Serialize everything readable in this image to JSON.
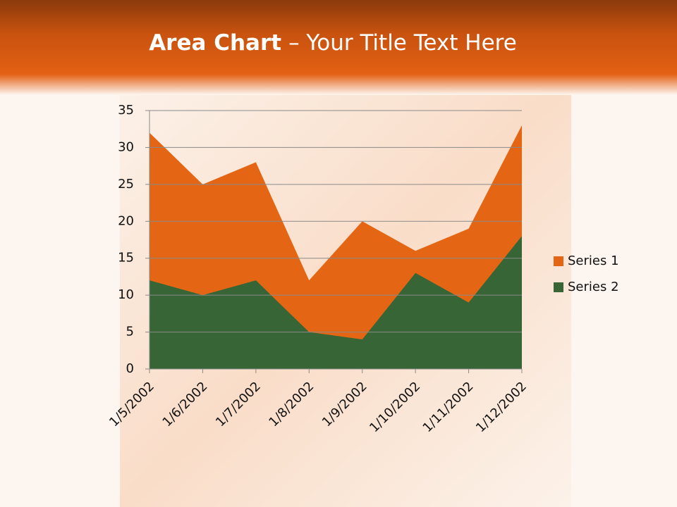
{
  "chart_data": {
    "type": "area",
    "title_bold": "Area Chart",
    "title": "– Your Title Text Here",
    "categories": [
      "1/5/2002",
      "1/6/2002",
      "1/7/2002",
      "1/8/2002",
      "1/9/2002",
      "1/10/2002",
      "1/11/2002",
      "1/12/2002"
    ],
    "series": [
      {
        "name": "Series 1",
        "color": "#e46614",
        "values": [
          32,
          25,
          28,
          12,
          20,
          16,
          19,
          33
        ]
      },
      {
        "name": "Series 2",
        "color": "#376535",
        "values": [
          12,
          10,
          12,
          5,
          4,
          13,
          9,
          18
        ]
      }
    ],
    "ylim": [
      0,
      35
    ],
    "yticks": [
      0,
      5,
      10,
      15,
      20,
      25,
      30,
      35
    ],
    "grid": true,
    "legend": "right"
  }
}
